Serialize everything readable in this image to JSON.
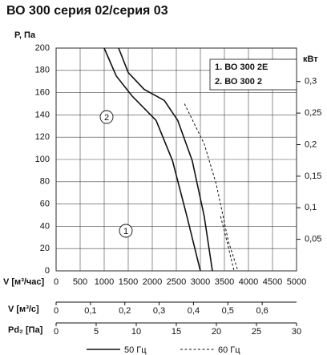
{
  "chart_data": {
    "type": "line",
    "title": "ВО 300 серия 02/серия 03",
    "ylabel": "P, Па",
    "y2label": "кВт",
    "xlabel": "V [м³/час]",
    "xlim": [
      0,
      5000
    ],
    "xticks": [
      0,
      500,
      1000,
      1500,
      2000,
      2500,
      3000,
      3500,
      4000,
      4500,
      5000
    ],
    "ylim": [
      0,
      200
    ],
    "yticks": [
      0,
      20,
      40,
      60,
      80,
      100,
      120,
      140,
      160,
      180,
      200
    ],
    "y2lim": [
      0,
      0.353
    ],
    "y2ticks": [
      {
        "value": 0.05,
        "label": "0,05"
      },
      {
        "value": 0.1,
        "label": "0,1"
      },
      {
        "value": 0.15,
        "label": "0,15"
      },
      {
        "value": 0.2,
        "label": "0,2"
      },
      {
        "value": 0.25,
        "label": "0,25"
      },
      {
        "value": 0.3,
        "label": "0,3"
      }
    ],
    "grid": true,
    "models": [
      "1. ВО 300 2Е",
      "2. ВО 300 2"
    ],
    "annotations": [
      "1",
      "2"
    ],
    "series": [
      {
        "name": "50 Гц",
        "color": "#111111",
        "dashed": false,
        "curves": [
          {
            "x": [
              1300,
              1500,
              1830,
              2250,
              2530,
              2830,
              3080,
              3250
            ],
            "y": [
              200,
              178,
              163,
              153,
              135,
              99,
              49,
              0
            ]
          },
          {
            "x": [
              1000,
              1250,
              1580,
              2080,
              2420,
              2720,
              3000
            ],
            "y": [
              200,
              175,
              157,
              135,
              99,
              49,
              0
            ]
          }
        ]
      },
      {
        "name": "60 Гц",
        "color": "#111111",
        "dashed": true,
        "curves": [
          {
            "x": [
              2670,
              3080,
              3330,
              3580,
              3780
            ],
            "y": [
              150,
              114,
              78,
              27,
              0
            ]
          },
          {
            "x": [
              3420,
              3550,
              3700
            ],
            "y": [
              49,
              27,
              0
            ]
          }
        ]
      }
    ],
    "secondary_axes": [
      {
        "label": "V [м³/с]",
        "xlim": [
          0,
          0.7
        ],
        "xticks": [
          0,
          {
            "value": 0.1,
            "label": "0,1"
          },
          {
            "value": 0.2,
            "label": "0,2"
          },
          {
            "value": 0.3,
            "label": "0,3"
          },
          {
            "value": 0.4,
            "label": "0,4"
          },
          {
            "value": 0.5,
            "label": "0,5"
          },
          {
            "value": 0.6,
            "label": "0,6"
          }
        ]
      },
      {
        "label": "Pd₂ [Па]",
        "xlim": [
          0,
          30
        ],
        "xticks": [
          0,
          5,
          10,
          15,
          20,
          25,
          30
        ]
      }
    ]
  }
}
